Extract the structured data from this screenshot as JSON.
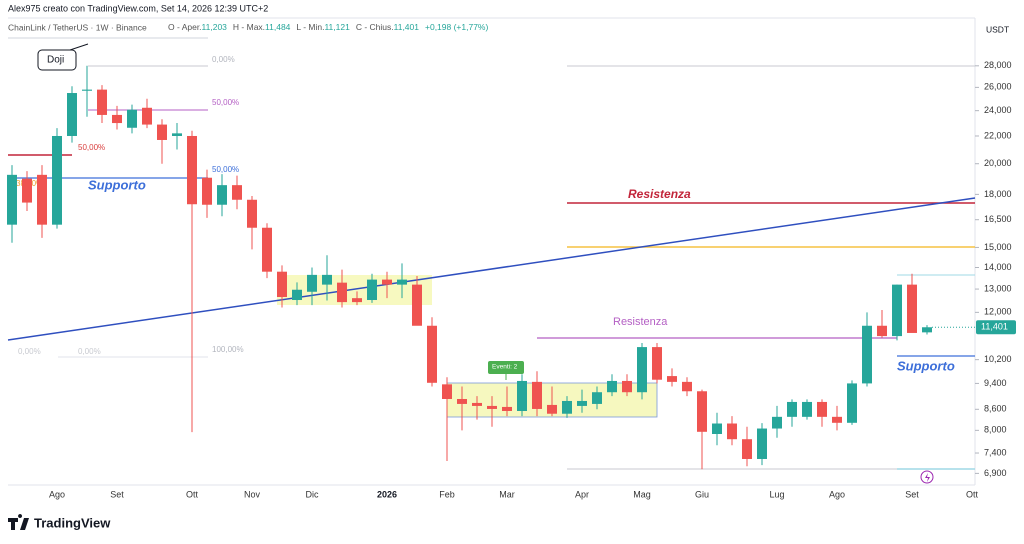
{
  "chart_data": {
    "type": "candlestick",
    "credit": "Alex975 creato con TradingView.com, Set 14, 2026 12:39 UTC+2",
    "title": "ChainLink / TetherUS · 1W · Binance",
    "ohlc_legend": [
      {
        "label": "O - Aper.",
        "value": "11,203"
      },
      {
        "label": "H - Max.",
        "value": "11,484"
      },
      {
        "label": "L - Min.",
        "value": "11,121"
      },
      {
        "label": "C - Chius.",
        "value": "11,401"
      },
      {
        "label": "",
        "value": "+0,198 (+1,77%)"
      }
    ],
    "currency": "USDT",
    "brand": "TradingView",
    "categories": [
      null,
      null,
      null,
      "Ago",
      null,
      null,
      null,
      "Set",
      null,
      null,
      null,
      null,
      "Ott",
      null,
      null,
      null,
      "Nov",
      null,
      null,
      null,
      "Dic",
      null,
      null,
      null,
      null,
      "2026",
      null,
      null,
      null,
      "Feb",
      null,
      null,
      null,
      "Mar",
      null,
      null,
      null,
      null,
      "Apr",
      null,
      null,
      null,
      "Mag",
      null,
      null,
      null,
      "Giu",
      null,
      null,
      null,
      null,
      "Lug",
      null,
      null,
      null,
      "Ago",
      null,
      null,
      null,
      null,
      "Set",
      null,
      null,
      null,
      "Ott"
    ],
    "open": [
      16220,
      19000,
      19250,
      16220,
      22000,
      25700,
      25800,
      23650,
      22630,
      24240,
      22880,
      22000,
      22000,
      19060,
      17370,
      18580,
      17670,
      16050,
      13800,
      12520,
      12880,
      13200,
      13290,
      12600,
      12520,
      13430,
      13200,
      13200,
      11460,
      9370,
      8910,
      8790,
      8700,
      8670,
      8550,
      9450,
      8730,
      8470,
      8700,
      8760,
      9120,
      9480,
      9120,
      10650,
      9640,
      9450,
      9150,
      7900,
      8190,
      7760,
      7250,
      8050,
      8380,
      8380,
      8820,
      8380,
      8210,
      9400,
      11460,
      11060,
      13200,
      11203,
      null,
      null,
      null
    ],
    "high": [
      19900,
      19500,
      19900,
      22600,
      26100,
      28000,
      26200,
      24400,
      24500,
      25000,
      23300,
      23000,
      22400,
      19600,
      19300,
      19200,
      17900,
      16300,
      14100,
      13300,
      14000,
      14600,
      13900,
      12900,
      13700,
      13800,
      14200,
      13600,
      11800,
      9600,
      9300,
      9000,
      9000,
      9300,
      9700,
      9800,
      9300,
      9000,
      9200,
      9300,
      9700,
      9700,
      10800,
      10800,
      9900,
      9600,
      9200,
      8500,
      8400,
      8100,
      8200,
      8700,
      8900,
      8900,
      8900,
      8700,
      9500,
      12000,
      12100,
      13200,
      13700,
      11484,
      null,
      null,
      null
    ],
    "low": [
      15240,
      17000,
      15500,
      16000,
      21500,
      23500,
      23000,
      22500,
      22200,
      22600,
      20000,
      21000,
      7950,
      16600,
      16700,
      17100,
      14900,
      13500,
      12200,
      12300,
      12300,
      12500,
      12200,
      12300,
      12400,
      12600,
      12600,
      11500,
      9300,
      7200,
      8000,
      8300,
      8100,
      8400,
      8400,
      8400,
      8400,
      8350,
      8500,
      8600,
      9000,
      9000,
      8900,
      9400,
      9300,
      9000,
      7000,
      7600,
      7600,
      7070,
      7100,
      7800,
      8100,
      8300,
      8100,
      8000,
      8150,
      9300,
      11000,
      10900,
      11200,
      11121,
      null,
      null,
      null
    ],
    "close": [
      19250,
      17500,
      16220,
      22000,
      25500,
      25800,
      23650,
      23000,
      24080,
      22880,
      21700,
      22200,
      17400,
      17370,
      18580,
      17670,
      16050,
      13800,
      12650,
      12970,
      13650,
      13650,
      12430,
      12430,
      13430,
      13200,
      13430,
      11460,
      9420,
      8910,
      8760,
      8700,
      8610,
      8550,
      9480,
      8610,
      8470,
      8850,
      8850,
      9120,
      9480,
      9120,
      10650,
      9520,
      9450,
      9150,
      7960,
      8190,
      7760,
      7250,
      8050,
      8380,
      8820,
      8820,
      8380,
      8210,
      9400,
      11460,
      11060,
      13200,
      11180,
      11401,
      null,
      null,
      null
    ],
    "up_color": "#26a69a",
    "down_color": "#ef5350",
    "log_scale": true,
    "grid": false,
    "ylim": [
      6630,
      33000
    ],
    "yticks": [
      {
        "value": 6900,
        "label": "6,900"
      },
      {
        "value": 7400,
        "label": "7,400"
      },
      {
        "value": 8000,
        "label": "8,000"
      },
      {
        "value": 8600,
        "label": "8,600"
      },
      {
        "value": 9400,
        "label": "9,400"
      },
      {
        "value": 10200,
        "label": "10,200"
      },
      {
        "value": 12000,
        "label": "12,000"
      },
      {
        "value": 13000,
        "label": "13,000"
      },
      {
        "value": 14000,
        "label": "14,000"
      },
      {
        "value": 15000,
        "label": "15,000"
      },
      {
        "value": 16500,
        "label": "16,500"
      },
      {
        "value": 18000,
        "label": "18,000"
      },
      {
        "value": 20000,
        "label": "20,000"
      },
      {
        "value": 22000,
        "label": "22,000"
      },
      {
        "value": 24000,
        "label": "24,000"
      },
      {
        "value": 26000,
        "label": "26,000"
      },
      {
        "value": 28000,
        "label": "28,000"
      }
    ],
    "last_price": {
      "value": 11401,
      "label": "11,401"
    },
    "annotations": [
      {
        "text": "Doji",
        "color": "#131722"
      },
      {
        "text": "Supporto",
        "color": "#3d6fd9"
      },
      {
        "text": "Resistenza",
        "color": "#c2253a"
      },
      {
        "text": "Resistenza",
        "color": "#b45fc4"
      },
      {
        "text": "Supporto",
        "color": "#3d6fd9"
      },
      {
        "text": "Eventi: 2",
        "color": "#ffffff"
      }
    ],
    "fib_labels": [
      {
        "text": "0,00%",
        "color": "#b2b5be"
      },
      {
        "text": "50,00%",
        "color": "#b45fc4"
      },
      {
        "text": "50,00%",
        "color": "#d9403f"
      },
      {
        "text": "50,00%",
        "color": "#3d6fd9"
      },
      {
        "text": "38,20%",
        "color": "#f0a030"
      },
      {
        "text": "100,00%",
        "color": "#b2b5be"
      },
      {
        "text": "0,00%",
        "color": "#c8cad0"
      },
      {
        "text": "0,00%",
        "color": "#c8cad0"
      }
    ]
  }
}
